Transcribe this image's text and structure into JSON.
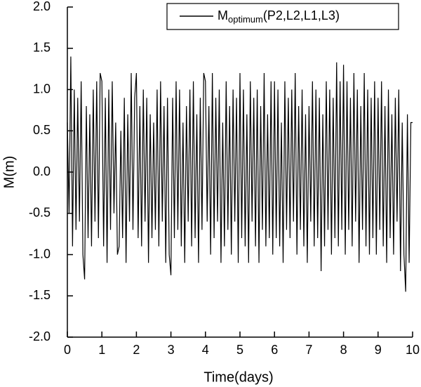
{
  "chart_data": {
    "type": "line",
    "xlabel": "Time(days)",
    "ylabel": "M(m)",
    "xlim": [
      0,
      10
    ],
    "ylim": [
      -2.0,
      2.0
    ],
    "xticks": [
      0,
      1,
      2,
      3,
      4,
      5,
      6,
      7,
      8,
      9,
      10
    ],
    "yticks": [
      {
        "value": -2.0,
        "label": "-2.0"
      },
      {
        "value": -1.5,
        "label": "-1.5"
      },
      {
        "value": -1.0,
        "label": "-1.0"
      },
      {
        "value": -0.5,
        "label": "-0.5"
      },
      {
        "value": 0,
        "label": "0.0"
      },
      {
        "value": 0.5,
        "label": "0.5"
      },
      {
        "value": 1.0,
        "label": "1.0"
      },
      {
        "value": 1.5,
        "label": "1.5"
      },
      {
        "value": 2.0,
        "label": "2.0"
      }
    ],
    "legend": "upper right",
    "x": [
      0,
      0.05,
      0.1,
      0.15,
      0.2,
      0.25,
      0.3,
      0.35,
      0.4,
      0.45,
      0.5,
      0.55,
      0.6,
      0.65,
      0.7,
      0.75,
      0.8,
      0.85,
      0.9,
      0.95,
      1,
      1.05,
      1.1,
      1.15,
      1.2,
      1.25,
      1.3,
      1.35,
      1.4,
      1.45,
      1.5,
      1.55,
      1.6,
      1.65,
      1.7,
      1.75,
      1.8,
      1.85,
      1.9,
      1.95,
      2,
      2.05,
      2.1,
      2.15,
      2.2,
      2.25,
      2.3,
      2.35,
      2.4,
      2.45,
      2.5,
      2.55,
      2.6,
      2.65,
      2.7,
      2.75,
      2.8,
      2.85,
      2.9,
      2.95,
      3,
      3.05,
      3.1,
      3.15,
      3.2,
      3.25,
      3.3,
      3.35,
      3.4,
      3.45,
      3.5,
      3.55,
      3.6,
      3.65,
      3.7,
      3.75,
      3.8,
      3.85,
      3.9,
      3.95,
      4,
      4.05,
      4.1,
      4.15,
      4.2,
      4.25,
      4.3,
      4.35,
      4.4,
      4.45,
      4.5,
      4.55,
      4.6,
      4.65,
      4.7,
      4.75,
      4.8,
      4.85,
      4.9,
      4.95,
      5,
      5.05,
      5.1,
      5.15,
      5.2,
      5.25,
      5.3,
      5.35,
      5.4,
      5.45,
      5.5,
      5.55,
      5.6,
      5.65,
      5.7,
      5.75,
      5.8,
      5.85,
      5.9,
      5.95,
      6,
      6.05,
      6.1,
      6.15,
      6.2,
      6.25,
      6.3,
      6.35,
      6.4,
      6.45,
      6.5,
      6.55,
      6.6,
      6.65,
      6.7,
      6.75,
      6.8,
      6.85,
      6.9,
      6.95,
      7,
      7.05,
      7.1,
      7.15,
      7.2,
      7.25,
      7.3,
      7.35,
      7.4,
      7.45,
      7.5,
      7.55,
      7.6,
      7.65,
      7.7,
      7.75,
      7.8,
      7.85,
      7.9,
      7.95,
      8,
      8.05,
      8.1,
      8.15,
      8.2,
      8.25,
      8.3,
      8.35,
      8.4,
      8.45,
      8.5,
      8.55,
      8.6,
      8.65,
      8.7,
      8.75,
      8.8,
      8.85,
      8.9,
      8.95,
      9,
      9.05,
      9.1,
      9.15,
      9.2,
      9.25,
      9.3,
      9.35,
      9.4,
      9.45,
      9.5,
      9.55,
      9.6,
      9.65,
      9.7,
      9.75,
      9.8,
      9.85,
      9.9,
      9.95,
      10
    ],
    "series": [
      {
        "name": "M",
        "name_subscript": "optimum",
        "name_suffix": "(P2,L2,L1,L3)",
        "color": "#000000",
        "values": [
          0.6,
          -0.5,
          1.4,
          -0.9,
          1.0,
          -0.7,
          0.9,
          -0.6,
          1.1,
          -1.0,
          -1.3,
          0.8,
          -0.8,
          0.7,
          -0.9,
          1.0,
          -0.6,
          1.1,
          -0.8,
          1.2,
          1.1,
          -0.9,
          0.9,
          -1.1,
          1.0,
          -0.7,
          1.1,
          -0.5,
          0.6,
          -1.0,
          -0.9,
          0.5,
          -0.8,
          0.9,
          -1.1,
          0.7,
          -0.6,
          1.2,
          -0.7,
          0.9,
          1.2,
          -0.8,
          0.8,
          -0.9,
          1.0,
          -0.6,
          0.9,
          -1.1,
          0.7,
          -0.8,
          0.6,
          -0.7,
          1.0,
          -0.9,
          1.1,
          -0.6,
          0.8,
          -1.1,
          0.9,
          -1.0,
          -1.25,
          0.9,
          -0.8,
          1.1,
          -0.7,
          1.0,
          -0.9,
          0.6,
          -1.1,
          0.8,
          -0.6,
          1.0,
          -0.9,
          1.1,
          -0.8,
          0.7,
          -1.1,
          0.9,
          -0.7,
          1.2,
          1.1,
          -0.6,
          0.8,
          -1.0,
          1.2,
          -0.8,
          0.9,
          -0.6,
          1.0,
          -1.1,
          0.6,
          -0.9,
          1.1,
          -0.7,
          0.8,
          -1.0,
          1.0,
          -0.6,
          0.9,
          -1.1,
          1.2,
          -0.8,
          1.0,
          -0.9,
          0.7,
          -1.1,
          1.1,
          -0.6,
          0.9,
          -0.9,
          1.0,
          -1.1,
          0.8,
          -0.7,
          1.2,
          -0.9,
          0.7,
          -0.8,
          1.1,
          -1.0,
          1.1,
          -0.8,
          1.0,
          -0.9,
          0.6,
          -1.1,
          1.1,
          -0.7,
          0.9,
          -0.8,
          1.0,
          -0.6,
          1.2,
          -1.0,
          0.8,
          -0.7,
          1.0,
          -0.9,
          0.7,
          -1.1,
          0.8,
          -0.6,
          1.1,
          -0.9,
          1.0,
          -0.8,
          0.9,
          -1.2,
          0.7,
          -0.9,
          1.1,
          -0.7,
          1.0,
          -1.0,
          0.9,
          -0.8,
          1.33,
          -0.9,
          1.1,
          -0.7,
          1.3,
          -1.0,
          1.1,
          -0.7,
          0.9,
          -0.9,
          1.2,
          -0.6,
          1.0,
          -1.1,
          0.8,
          -0.7,
          1.2,
          -0.9,
          1.0,
          -1.0,
          0.9,
          -0.8,
          1.1,
          -1.0,
          0.9,
          -0.7,
          1.1,
          -0.9,
          0.8,
          -1.1,
          1.0,
          -0.8,
          0.7,
          -1.0,
          0.9,
          -0.6,
          1.0,
          -1.2,
          0.6,
          -1.0,
          -1.45,
          0.7,
          -1.1,
          0.6,
          0.6
        ]
      }
    ]
  }
}
